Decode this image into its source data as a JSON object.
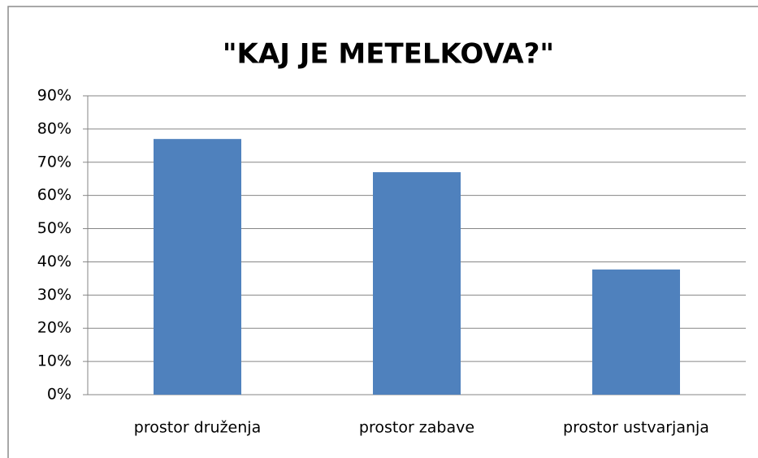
{
  "chart_data": {
    "type": "bar",
    "title": "\"KAJ JE METELKOVA?\"",
    "categories": [
      "prostor druženja",
      "prostor zabave",
      "prostor ustvarjanja"
    ],
    "values": [
      77,
      67,
      37.7
    ],
    "color": "#4f81bd",
    "ylim": [
      0,
      90
    ],
    "yticks": [
      {
        "value": 0,
        "label": "0%"
      },
      {
        "value": 10,
        "label": "10%"
      },
      {
        "value": 20,
        "label": "20%"
      },
      {
        "value": 30,
        "label": "30%"
      },
      {
        "value": 40,
        "label": "40%"
      },
      {
        "value": 50,
        "label": "50%"
      },
      {
        "value": 60,
        "label": "60%"
      },
      {
        "value": 70,
        "label": "70%"
      },
      {
        "value": 80,
        "label": "80%"
      },
      {
        "value": 90,
        "label": "90%"
      }
    ],
    "grid": true
  }
}
